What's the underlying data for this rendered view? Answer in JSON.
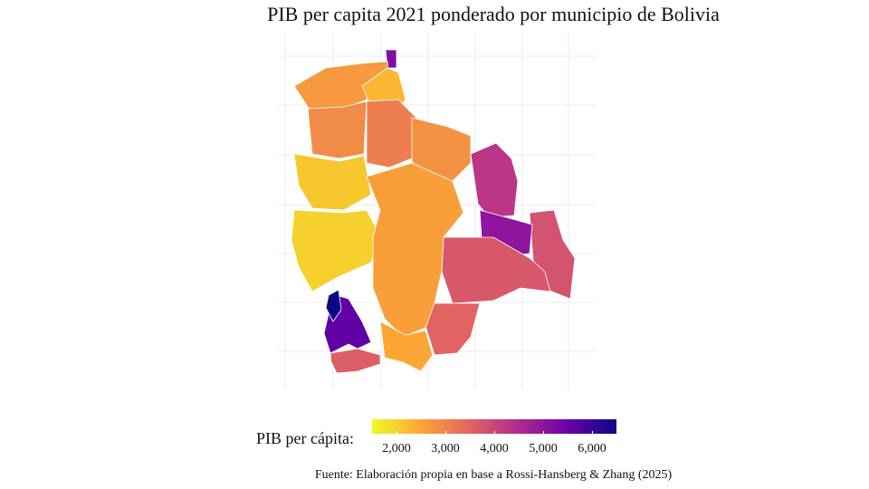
{
  "title": "PIB per capita 2021 ponderado por municipio de Bolivia",
  "legend": {
    "title": "PIB per cápita:",
    "min": 1500,
    "max": 6500,
    "ticks": [
      {
        "value": 2000,
        "label": "2,000"
      },
      {
        "value": 3000,
        "label": "3,000"
      },
      {
        "value": 4000,
        "label": "4,000"
      },
      {
        "value": 5000,
        "label": "5,000"
      },
      {
        "value": 6000,
        "label": "6,000"
      }
    ],
    "palette": [
      "#f0f921",
      "#fca636",
      "#e16462",
      "#b12a90",
      "#6a00a8",
      "#0d0887"
    ]
  },
  "caption": "Fuente: Elaboración propia en base a Rossi-Hansberg & Zhang (2025)",
  "regions": [
    {
      "name": "north-tip",
      "value": 5200
    },
    {
      "name": "pando-west",
      "value": 2700
    },
    {
      "name": "pando-east",
      "value": 2300
    },
    {
      "name": "beni-northwest",
      "value": 2900
    },
    {
      "name": "beni-center",
      "value": 3100
    },
    {
      "name": "beni-east",
      "value": 2800
    },
    {
      "name": "santa-cruz-northeast",
      "value": 4300
    },
    {
      "name": "santa-cruz-east",
      "value": 3800
    },
    {
      "name": "santa-cruz-center",
      "value": 5000
    },
    {
      "name": "santa-cruz-south",
      "value": 3700
    },
    {
      "name": "chaco",
      "value": 3500
    },
    {
      "name": "altiplano-north",
      "value": 2100
    },
    {
      "name": "altiplano-center",
      "value": 2000
    },
    {
      "name": "valleys",
      "value": 2600
    },
    {
      "name": "potosi-west",
      "value": 5600
    },
    {
      "name": "potosi-southwest",
      "value": 3600
    },
    {
      "name": "tarija",
      "value": 2500
    },
    {
      "name": "oruro-strip",
      "value": 6500
    }
  ]
}
